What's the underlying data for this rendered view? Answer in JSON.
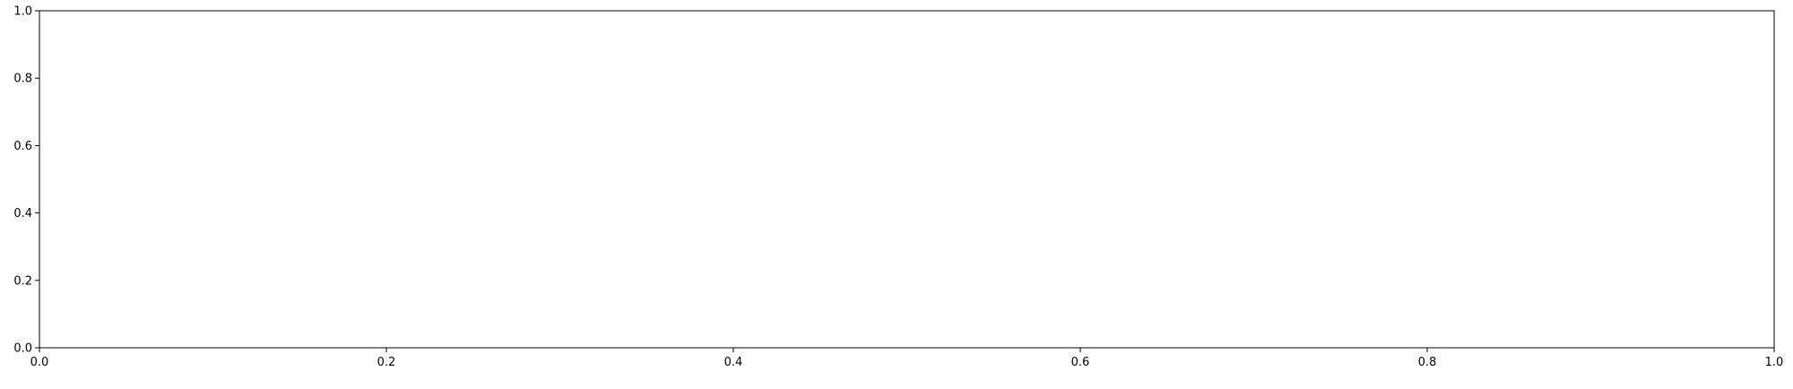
{
  "chart_data": {
    "type": "line",
    "title": "",
    "xlabel": "",
    "ylabel": "",
    "xlim": [
      0,
      1
    ],
    "ylim": [
      0,
      1
    ],
    "x_ticks": [
      0.0,
      0.2,
      0.4,
      0.6,
      0.8,
      1.0
    ],
    "y_ticks": [
      0.0,
      0.2,
      0.4,
      0.6,
      0.8,
      1.0
    ],
    "x_tick_labels": [
      "0.0",
      "0.2",
      "0.4",
      "0.6",
      "0.8",
      "1.0"
    ],
    "y_tick_labels": [
      "0.0",
      "0.2",
      "0.4",
      "0.6",
      "0.8",
      "1.0"
    ],
    "series": [],
    "grid": false,
    "legend": "none",
    "colors": {
      "axes": "#000000",
      "background": "#ffffff"
    }
  }
}
